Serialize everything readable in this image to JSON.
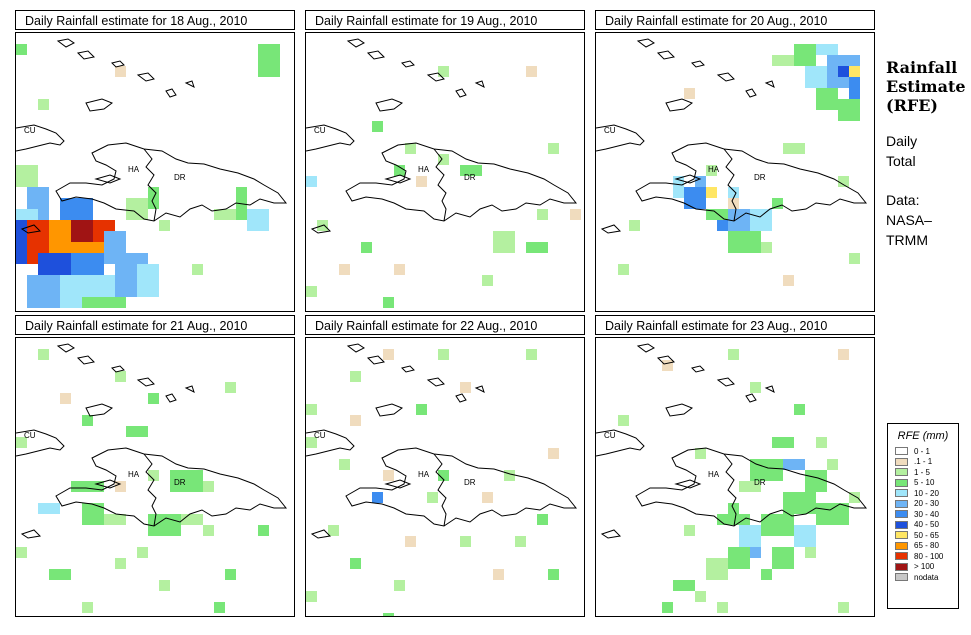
{
  "panels": [
    {
      "title": "Daily Rainfall estimate for  18 Aug., 2010"
    },
    {
      "title": "Daily Rainfall estimate for  19 Aug., 2010"
    },
    {
      "title": "Daily Rainfall estimate for  20 Aug., 2010"
    },
    {
      "title": "Daily Rainfall estimate for  21 Aug., 2010"
    },
    {
      "title": "Daily Rainfall estimate for  22 Aug., 2010"
    },
    {
      "title": "Daily Rainfall estimate for  23 Aug., 2010"
    }
  ],
  "map_labels": {
    "cu": "CU",
    "ha": "HA",
    "dr": "DR"
  },
  "side": {
    "title_line1": "Rainfall",
    "title_line2": "Estimate",
    "title_line3": "(RFE)",
    "daily": "Daily",
    "total": "Total",
    "data": "Data:",
    "nasa": "NASA–",
    "trmm": "TRMM"
  },
  "legend": {
    "title": "RFE (mm)",
    "items": [
      {
        "label": "0 - 1",
        "color": "#ffffff"
      },
      {
        "label": ".1 - 1",
        "color": "#f0dcbe"
      },
      {
        "label": "1 - 5",
        "color": "#b4f0a0"
      },
      {
        "label": "5 - 10",
        "color": "#78e678"
      },
      {
        "label": "10 - 20",
        "color": "#a0e6fa"
      },
      {
        "label": "20 - 30",
        "color": "#6eb4f5"
      },
      {
        "label": "30 - 40",
        "color": "#3c8cf0"
      },
      {
        "label": "40 - 50",
        "color": "#1e50dc"
      },
      {
        "label": "50 - 65",
        "color": "#ffe664"
      },
      {
        "label": "65 - 80",
        "color": "#ff9600"
      },
      {
        "label": "80 - 100",
        "color": "#e63200"
      },
      {
        "label": "> 100",
        "color": "#a01414"
      },
      {
        "label": "nodata",
        "color": "#c8c8c8"
      }
    ]
  }
}
